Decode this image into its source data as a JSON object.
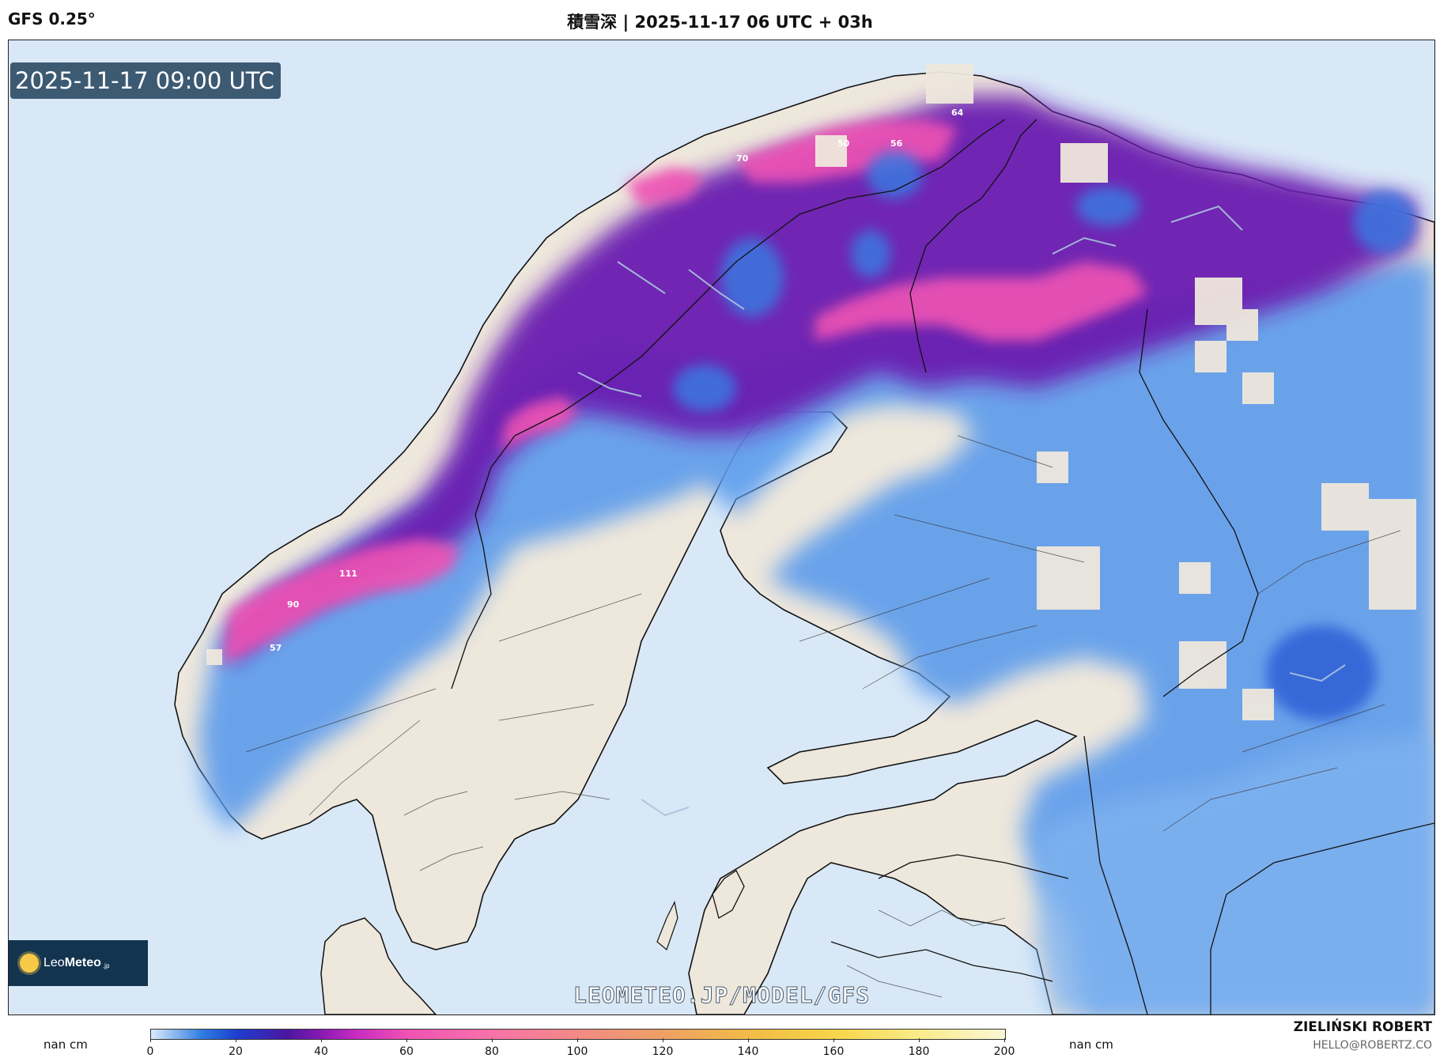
{
  "header": {
    "model": "GFS 0.25°",
    "title": "積雪深 | 2025-11-17 06 UTC + 03h"
  },
  "map": {
    "valid_time": "2025-11-17 09:00 UTC",
    "watermark": "LEOMETEO.JP/MODEL/GFS",
    "logo": {
      "text_light": "Leo",
      "text_bold": "Meteo",
      "suffix": ".jp"
    },
    "point_labels": [
      "64",
      "50",
      "56",
      "70",
      "111",
      "90",
      "57"
    ],
    "colors": {
      "sea": "#d9e8f6",
      "land": "#eee7dc",
      "snow_light": "#2f7de1",
      "snow_mid": "#6a1bb0",
      "snow_heavy": "#f052b4"
    }
  },
  "legend": {
    "nan_left": "nan cm",
    "nan_right": "nan cm",
    "ticks": [
      "0",
      "20",
      "40",
      "60",
      "80",
      "100",
      "120",
      "140",
      "160",
      "180",
      "200"
    ]
  },
  "credit": {
    "author": "ZIELIŃSKI ROBERT",
    "email": "HELLO@ROBERTZ.CO"
  }
}
